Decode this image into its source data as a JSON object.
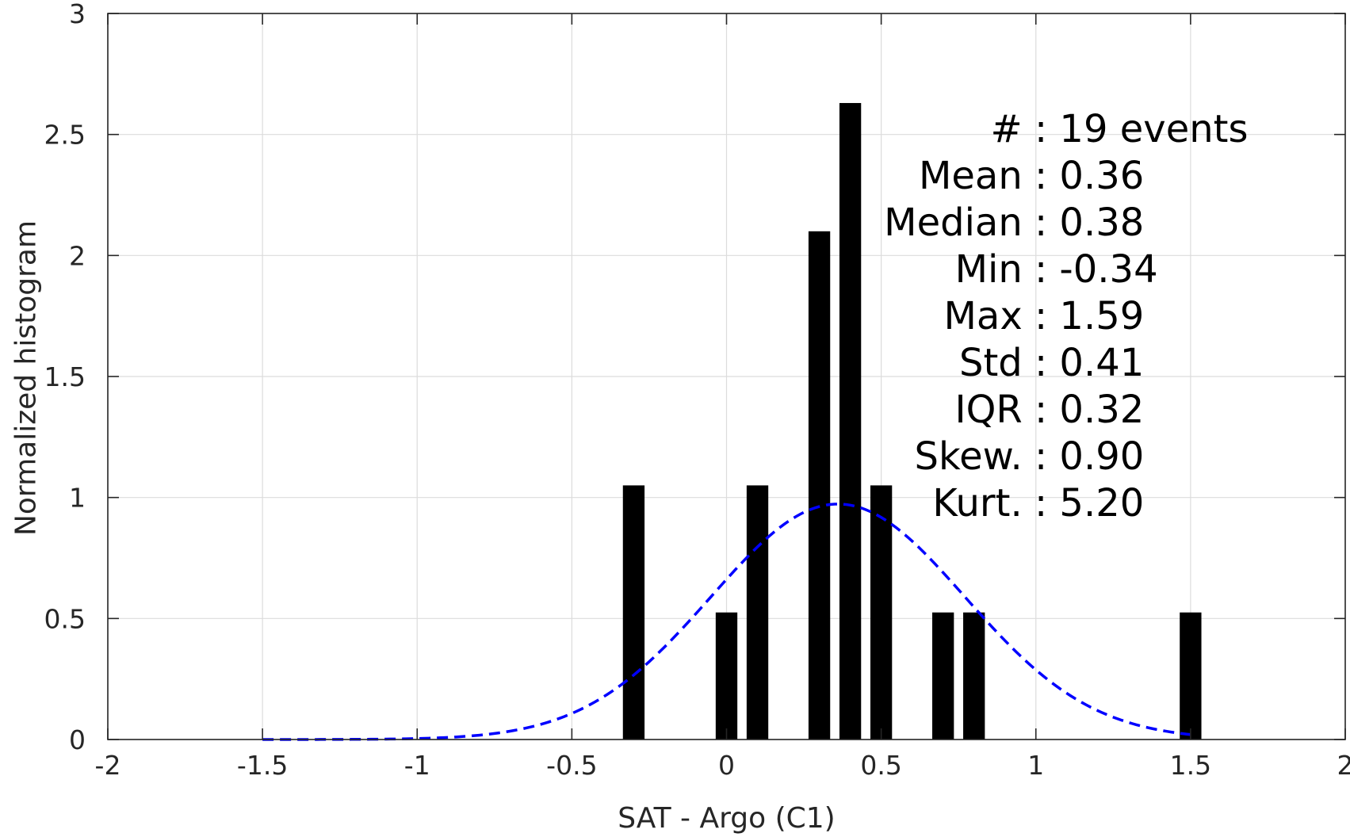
{
  "chart_data": {
    "type": "bar",
    "xlabel": "SAT - Argo (C1)",
    "ylabel": "Normalized histogram",
    "xlim": [
      -2,
      2
    ],
    "ylim": [
      0,
      3
    ],
    "grid": true,
    "x_ticks": [
      "-2",
      "-1.5",
      "-1",
      "-0.5",
      "0",
      "0.5",
      "1",
      "1.5",
      "2"
    ],
    "x_tick_values": [
      -2,
      -1.5,
      -1,
      -0.5,
      0,
      0.5,
      1,
      1.5,
      2
    ],
    "y_ticks": [
      "0",
      "0.5",
      "1",
      "1.5",
      "2",
      "2.5",
      "3"
    ],
    "y_tick_values": [
      0,
      0.5,
      1,
      1.5,
      2,
      2.5,
      3
    ],
    "bar_width": 0.07,
    "bar_color": "#000000",
    "bars": [
      {
        "x": -0.3,
        "y": 1.05
      },
      {
        "x": 0.0,
        "y": 0.525
      },
      {
        "x": 0.1,
        "y": 1.05
      },
      {
        "x": 0.3,
        "y": 2.1
      },
      {
        "x": 0.4,
        "y": 2.63
      },
      {
        "x": 0.5,
        "y": 1.05
      },
      {
        "x": 0.7,
        "y": 0.525
      },
      {
        "x": 0.8,
        "y": 0.525
      },
      {
        "x": 1.5,
        "y": 0.525
      }
    ],
    "fit_curve": {
      "type": "normal",
      "mean": 0.36,
      "std": 0.41,
      "x_range": [
        -1.5,
        1.5
      ],
      "color": "#0000ff",
      "style": "dashed"
    },
    "stats": [
      "#  : 19 events",
      "Mean : 0.36",
      "Median : 0.38",
      "Min : -0.34",
      "Max : 1.59",
      "Std : 0.41",
      "IQR : 0.32",
      "Skew. : 0.90",
      "Kurt. : 5.20"
    ]
  }
}
